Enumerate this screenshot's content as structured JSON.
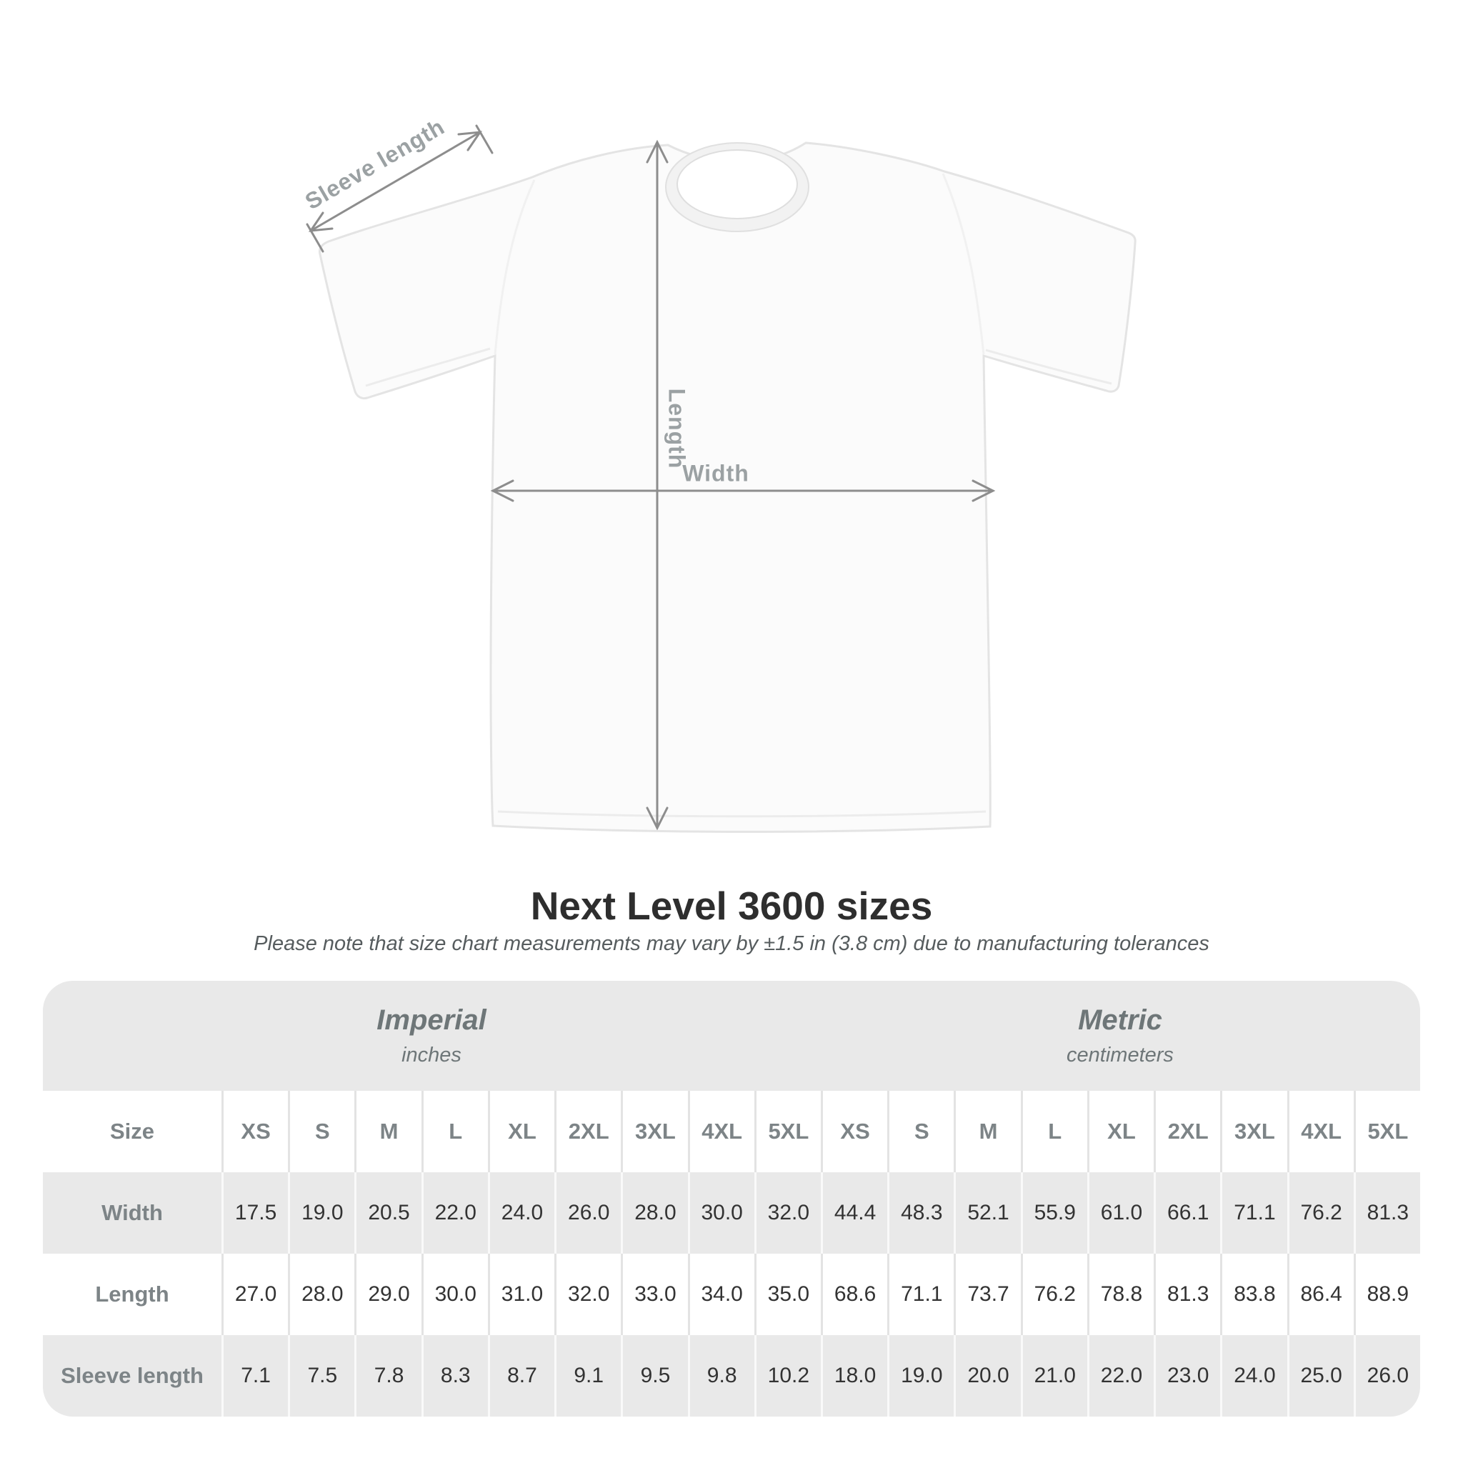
{
  "title": "Next Level 3600 sizes",
  "subtitle": "Please note that size chart measurements may vary by ±1.5 in (3.8 cm) due to manufacturing tolerances",
  "diagram": {
    "sleeve_length_label": "Sleeve length",
    "length_label": "Length",
    "width_label": "Width",
    "arrow_color": "#8d8d8d",
    "label_color": "#9ba1a3",
    "shirt_fill": "#fbfbfb",
    "shirt_outline": "#e4e4e4"
  },
  "table": {
    "imperial": {
      "title": "Imperial",
      "unit": "inches"
    },
    "metric": {
      "title": "Metric",
      "unit": "centimeters"
    },
    "corner_label": "Size",
    "sizes": [
      "XS",
      "S",
      "M",
      "L",
      "XL",
      "2XL",
      "3XL",
      "4XL",
      "5XL"
    ],
    "rows": [
      {
        "label": "Width",
        "imperial": [
          "17.5",
          "19.0",
          "20.5",
          "22.0",
          "24.0",
          "26.0",
          "28.0",
          "30.0",
          "32.0"
        ],
        "metric": [
          "44.4",
          "48.3",
          "52.1",
          "55.9",
          "61.0",
          "66.1",
          "71.1",
          "76.2",
          "81.3"
        ]
      },
      {
        "label": "Length",
        "imperial": [
          "27.0",
          "28.0",
          "29.0",
          "30.0",
          "31.0",
          "32.0",
          "33.0",
          "34.0",
          "35.0"
        ],
        "metric": [
          "68.6",
          "71.1",
          "73.7",
          "76.2",
          "78.8",
          "81.3",
          "83.8",
          "86.4",
          "88.9"
        ]
      },
      {
        "label": "Sleeve length",
        "imperial": [
          "7.1",
          "7.5",
          "7.8",
          "8.3",
          "8.7",
          "9.1",
          "9.5",
          "9.8",
          "10.2"
        ],
        "metric": [
          "18.0",
          "19.0",
          "20.0",
          "21.0",
          "22.0",
          "23.0",
          "24.0",
          "25.0",
          "26.0"
        ]
      }
    ],
    "colors": {
      "band": "#e9e9e9",
      "separator_on_white": "#e3e3e3",
      "separator_on_gray": "#f9f9f9",
      "header_text": "#7d8487",
      "value_text": "#333333"
    }
  }
}
